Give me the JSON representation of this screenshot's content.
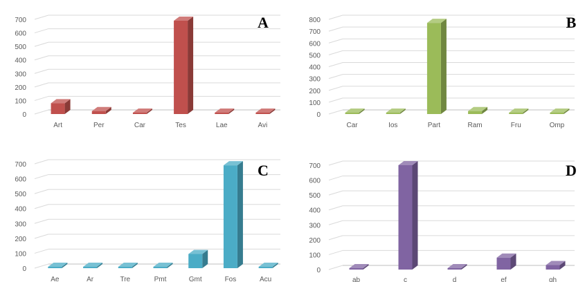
{
  "chart_data": [
    {
      "type": "bar",
      "panel_label": "A",
      "color": "#c0504d",
      "categories": [
        "Art",
        "Per",
        "Car",
        "Tes",
        "Lae",
        "Avi"
      ],
      "values": [
        80,
        22,
        4,
        690,
        5,
        5
      ],
      "yticks": [
        0,
        100,
        200,
        300,
        400,
        500,
        600,
        700
      ],
      "ylim": [
        0,
        700
      ]
    },
    {
      "type": "bar",
      "panel_label": "B",
      "color": "#9bbb59",
      "categories": [
        "Car",
        "Ios",
        "Part",
        "Ram",
        "Fru",
        "Omp"
      ],
      "values": [
        2,
        2,
        770,
        25,
        2,
        2
      ],
      "yticks": [
        0,
        100,
        200,
        300,
        400,
        500,
        600,
        700,
        800
      ],
      "ylim": [
        0,
        800
      ]
    },
    {
      "type": "bar",
      "panel_label": "C",
      "color": "#4bacc6",
      "categories": [
        "Ae",
        "Ar",
        "Tre",
        "Pmt",
        "Gmt",
        "Fos",
        "Acu"
      ],
      "values": [
        2,
        2,
        2,
        5,
        95,
        690,
        2
      ],
      "yticks": [
        0,
        100,
        200,
        300,
        400,
        500,
        600,
        700
      ],
      "ylim": [
        0,
        700
      ]
    },
    {
      "type": "bar",
      "panel_label": "D",
      "color": "#8064a2",
      "categories": [
        "ab",
        "c",
        "d",
        "ef",
        "gh"
      ],
      "values": [
        5,
        700,
        5,
        80,
        30
      ],
      "yticks": [
        0,
        100,
        200,
        300,
        400,
        500,
        600,
        700
      ],
      "ylim": [
        0,
        700
      ]
    }
  ]
}
